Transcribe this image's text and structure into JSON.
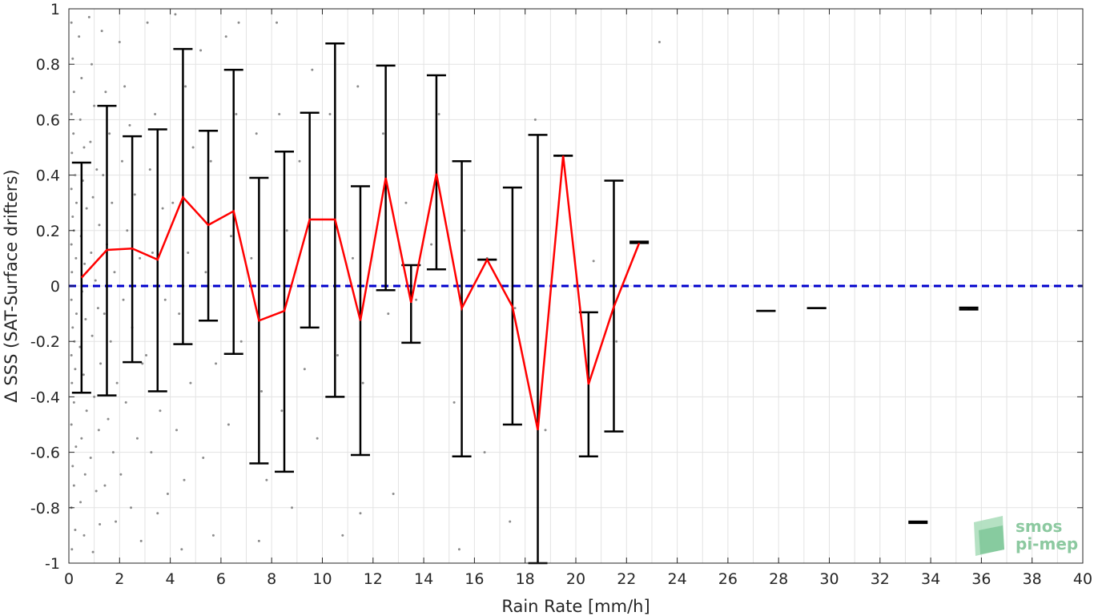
{
  "chart_data": {
    "type": "scatter",
    "xlabel": "Rain Rate [mm/h]",
    "ylabel": "Δ SSS (SAT-Surface drifters)",
    "xlim": [
      0,
      40
    ],
    "ylim": [
      -1,
      1
    ],
    "x_ticks": [
      "0",
      "2",
      "4",
      "6",
      "8",
      "10",
      "12",
      "14",
      "16",
      "18",
      "20",
      "22",
      "24",
      "26",
      "28",
      "30",
      "32",
      "34",
      "36",
      "38",
      "40"
    ],
    "y_ticks": [
      "-1",
      "-0.8",
      "-0.6",
      "-0.4",
      "-0.2",
      "0",
      "0.2",
      "0.4",
      "0.6",
      "0.8",
      "1"
    ],
    "x_minor_grid_step": 1,
    "grid": true,
    "reference_line": {
      "y": 0,
      "color": "#0000cc",
      "style": "dashed"
    },
    "mean_line": {
      "color": "#ff0000",
      "x": [
        0.5,
        1.5,
        2.5,
        3.5,
        4.5,
        5.5,
        6.5,
        7.5,
        8.5,
        9.5,
        10.5,
        11.5,
        12.5,
        13.5,
        14.5,
        15.5,
        16.5,
        17.5,
        18.5,
        19.5,
        20.5,
        21.5,
        22.5
      ],
      "y": [
        0.03,
        0.13,
        0.135,
        0.095,
        0.32,
        0.22,
        0.27,
        -0.125,
        -0.09,
        0.24,
        0.24,
        -0.125,
        0.39,
        -0.06,
        0.405,
        -0.08,
        0.095,
        -0.075,
        -0.52,
        0.47,
        -0.355,
        -0.075,
        0.155
      ]
    },
    "error_bars": [
      {
        "x": 0.5,
        "low": -0.385,
        "high": 0.445
      },
      {
        "x": 1.5,
        "low": -0.395,
        "high": 0.65
      },
      {
        "x": 2.5,
        "low": -0.275,
        "high": 0.54
      },
      {
        "x": 3.5,
        "low": -0.38,
        "high": 0.565
      },
      {
        "x": 4.5,
        "low": -0.21,
        "high": 0.855
      },
      {
        "x": 5.5,
        "low": -0.125,
        "high": 0.56
      },
      {
        "x": 6.5,
        "low": -0.245,
        "high": 0.78
      },
      {
        "x": 7.5,
        "low": -0.64,
        "high": 0.39
      },
      {
        "x": 8.5,
        "low": -0.67,
        "high": 0.485
      },
      {
        "x": 9.5,
        "low": -0.15,
        "high": 0.625
      },
      {
        "x": 10.5,
        "low": -0.4,
        "high": 0.875
      },
      {
        "x": 11.5,
        "low": -0.61,
        "high": 0.36
      },
      {
        "x": 12.5,
        "low": -0.015,
        "high": 0.795
      },
      {
        "x": 13.5,
        "low": -0.205,
        "high": 0.075
      },
      {
        "x": 14.5,
        "low": 0.06,
        "high": 0.76
      },
      {
        "x": 15.5,
        "low": -0.615,
        "high": 0.45
      },
      {
        "x": 16.5,
        "low": 0.095,
        "high": 0.095
      },
      {
        "x": 17.5,
        "low": -0.5,
        "high": 0.355
      },
      {
        "x": 18.5,
        "low": -1.0,
        "high": 0.545
      },
      {
        "x": 19.5,
        "low": 0.47,
        "high": 0.47
      },
      {
        "x": 20.5,
        "low": -0.615,
        "high": -0.095
      },
      {
        "x": 21.5,
        "low": -0.525,
        "high": 0.38
      },
      {
        "x": 22.5,
        "low": 0.155,
        "high": 0.16
      },
      {
        "x": 27.5,
        "low": -0.09,
        "high": -0.09
      },
      {
        "x": 29.5,
        "low": -0.08,
        "high": -0.08
      },
      {
        "x": 33.5,
        "low": -0.855,
        "high": -0.85
      },
      {
        "x": 35.5,
        "low": -0.085,
        "high": -0.078
      }
    ],
    "scatter_color": "#8c8c8c",
    "scatter_points": [
      [
        0.1,
        0.95
      ],
      [
        0.15,
        0.82
      ],
      [
        0.2,
        0.7
      ],
      [
        0.1,
        0.62
      ],
      [
        0.18,
        0.55
      ],
      [
        0.12,
        0.48
      ],
      [
        0.25,
        0.4
      ],
      [
        0.1,
        0.35
      ],
      [
        0.3,
        0.3
      ],
      [
        0.15,
        0.25
      ],
      [
        0.2,
        0.2
      ],
      [
        0.1,
        0.15
      ],
      [
        0.28,
        0.1
      ],
      [
        0.12,
        0.05
      ],
      [
        0.2,
        0.0
      ],
      [
        0.1,
        -0.05
      ],
      [
        0.3,
        -0.1
      ],
      [
        0.15,
        -0.15
      ],
      [
        0.22,
        -0.2
      ],
      [
        0.1,
        -0.25
      ],
      [
        0.25,
        -0.3
      ],
      [
        0.12,
        -0.35
      ],
      [
        0.2,
        -0.42
      ],
      [
        0.1,
        -0.5
      ],
      [
        0.28,
        -0.58
      ],
      [
        0.15,
        -0.65
      ],
      [
        0.2,
        -0.72
      ],
      [
        0.1,
        -0.8
      ],
      [
        0.25,
        -0.88
      ],
      [
        0.12,
        -0.95
      ],
      [
        0.4,
        0.9
      ],
      [
        0.5,
        0.75
      ],
      [
        0.45,
        0.6
      ],
      [
        0.6,
        0.5
      ],
      [
        0.55,
        0.38
      ],
      [
        0.7,
        0.28
      ],
      [
        0.48,
        0.18
      ],
      [
        0.62,
        0.08
      ],
      [
        0.52,
        -0.02
      ],
      [
        0.66,
        -0.12
      ],
      [
        0.44,
        -0.22
      ],
      [
        0.58,
        -0.32
      ],
      [
        0.7,
        -0.45
      ],
      [
        0.5,
        -0.55
      ],
      [
        0.64,
        -0.68
      ],
      [
        0.46,
        -0.78
      ],
      [
        0.6,
        -0.9
      ],
      [
        0.8,
        0.97
      ],
      [
        0.9,
        0.8
      ],
      [
        1.0,
        0.65
      ],
      [
        0.85,
        0.52
      ],
      [
        1.1,
        0.42
      ],
      [
        0.95,
        0.32
      ],
      [
        1.2,
        0.22
      ],
      [
        0.88,
        0.12
      ],
      [
        1.05,
        0.02
      ],
      [
        1.15,
        -0.08
      ],
      [
        0.92,
        -0.18
      ],
      [
        1.25,
        -0.28
      ],
      [
        1.0,
        -0.4
      ],
      [
        1.18,
        -0.52
      ],
      [
        0.86,
        -0.62
      ],
      [
        1.08,
        -0.74
      ],
      [
        1.22,
        -0.86
      ],
      [
        0.95,
        -0.96
      ],
      [
        1.3,
        0.92
      ],
      [
        1.45,
        0.7
      ],
      [
        1.6,
        0.55
      ],
      [
        1.35,
        0.4
      ],
      [
        1.7,
        0.3
      ],
      [
        1.5,
        0.15
      ],
      [
        1.8,
        0.05
      ],
      [
        1.4,
        -0.1
      ],
      [
        1.65,
        -0.2
      ],
      [
        1.9,
        -0.35
      ],
      [
        1.55,
        -0.48
      ],
      [
        1.75,
        -0.6
      ],
      [
        1.42,
        -0.72
      ],
      [
        1.85,
        -0.85
      ],
      [
        2.0,
        0.88
      ],
      [
        2.2,
        0.72
      ],
      [
        2.4,
        0.58
      ],
      [
        2.1,
        0.45
      ],
      [
        2.6,
        0.33
      ],
      [
        2.3,
        0.2
      ],
      [
        2.8,
        0.1
      ],
      [
        2.15,
        -0.05
      ],
      [
        2.5,
        -0.15
      ],
      [
        2.9,
        -0.28
      ],
      [
        2.25,
        -0.42
      ],
      [
        2.7,
        -0.55
      ],
      [
        2.05,
        -0.68
      ],
      [
        2.45,
        -0.8
      ],
      [
        2.85,
        -0.92
      ],
      [
        3.1,
        0.95
      ],
      [
        3.4,
        0.62
      ],
      [
        3.2,
        0.42
      ],
      [
        3.7,
        0.28
      ],
      [
        3.3,
        0.12
      ],
      [
        3.8,
        -0.05
      ],
      [
        3.05,
        -0.25
      ],
      [
        3.6,
        -0.45
      ],
      [
        3.25,
        -0.6
      ],
      [
        3.9,
        -0.75
      ],
      [
        3.5,
        -0.82
      ],
      [
        4.2,
        0.98
      ],
      [
        4.6,
        0.72
      ],
      [
        4.9,
        0.5
      ],
      [
        4.1,
        0.3
      ],
      [
        4.7,
        0.12
      ],
      [
        4.35,
        -0.1
      ],
      [
        4.8,
        -0.35
      ],
      [
        4.25,
        -0.52
      ],
      [
        4.55,
        -0.7
      ],
      [
        4.45,
        -0.95
      ],
      [
        5.2,
        0.85
      ],
      [
        5.6,
        0.45
      ],
      [
        5.4,
        0.05
      ],
      [
        5.8,
        -0.28
      ],
      [
        5.3,
        -0.62
      ],
      [
        5.7,
        -0.9
      ],
      [
        6.2,
        0.9
      ],
      [
        6.6,
        0.62
      ],
      [
        6.4,
        0.18
      ],
      [
        6.8,
        -0.2
      ],
      [
        6.3,
        -0.5
      ],
      [
        6.7,
        0.95
      ],
      [
        7.4,
        0.55
      ],
      [
        7.2,
        0.1
      ],
      [
        7.6,
        -0.38
      ],
      [
        7.8,
        -0.7
      ],
      [
        7.5,
        -0.92
      ],
      [
        8.3,
        0.62
      ],
      [
        8.6,
        0.2
      ],
      [
        8.4,
        -0.45
      ],
      [
        8.8,
        -0.8
      ],
      [
        8.2,
        0.95
      ],
      [
        9.1,
        0.45
      ],
      [
        9.3,
        -0.3
      ],
      [
        9.6,
        0.78
      ],
      [
        9.8,
        -0.55
      ],
      [
        10.3,
        0.62
      ],
      [
        10.6,
        -0.25
      ],
      [
        10.8,
        -0.9
      ],
      [
        11.4,
        0.72
      ],
      [
        11.6,
        -0.35
      ],
      [
        11.2,
        0.1
      ],
      [
        11.5,
        -0.82
      ],
      [
        12.4,
        0.55
      ],
      [
        12.6,
        -0.1
      ],
      [
        12.8,
        -0.75
      ],
      [
        13.3,
        0.3
      ],
      [
        13.7,
        -0.05
      ],
      [
        14.6,
        0.62
      ],
      [
        14.3,
        0.15
      ],
      [
        15.2,
        -0.42
      ],
      [
        15.6,
        0.2
      ],
      [
        15.4,
        -0.95
      ],
      [
        16.5,
        0.1
      ],
      [
        16.4,
        -0.6
      ],
      [
        17.6,
        -0.08
      ],
      [
        17.4,
        -0.85
      ],
      [
        18.4,
        0.6
      ],
      [
        18.8,
        -0.52
      ],
      [
        19.3,
        0.47
      ],
      [
        20.7,
        0.09
      ],
      [
        21.6,
        -0.2
      ],
      [
        23.3,
        0.88
      ]
    ]
  },
  "logo": {
    "line1": "smos",
    "line2": "pi-mep"
  }
}
